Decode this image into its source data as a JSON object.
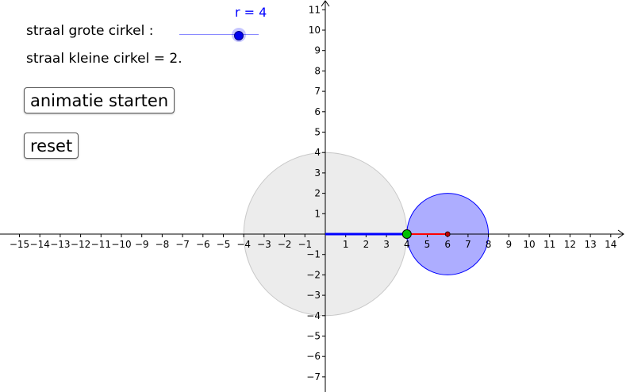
{
  "controls": {
    "big_radius_label": "straal grote cirkel :",
    "small_radius_label": "straal kleine cirkel = 2.",
    "slider_label": "r = 4",
    "slider_value": 4,
    "slider_min": 1,
    "slider_max": 5,
    "animate_button": "animatie starten",
    "reset_button": "reset"
  },
  "chart_data": {
    "type": "geometry",
    "xlim": [
      -15.5,
      14.5
    ],
    "ylim": [
      -7.5,
      11.2
    ],
    "x_ticks": [
      -15,
      -14,
      -13,
      -12,
      -11,
      -10,
      -9,
      -8,
      -7,
      -6,
      -5,
      -4,
      -3,
      -2,
      -1,
      1,
      2,
      3,
      4,
      5,
      6,
      7,
      8,
      9,
      10,
      11,
      12,
      13,
      14
    ],
    "y_ticks": [
      -7,
      -6,
      -5,
      -4,
      -3,
      -2,
      -1,
      1,
      2,
      3,
      4,
      5,
      6,
      7,
      8,
      9,
      10,
      11
    ],
    "grid": false,
    "big_circle": {
      "center": [
        0,
        0
      ],
      "radius": 4,
      "fill": "#ececec",
      "stroke": "#c8c8c8"
    },
    "small_circle": {
      "center": [
        6,
        0
      ],
      "radius": 2,
      "fill": "#a9a9ff",
      "stroke": "#0000ff"
    },
    "segment_blue": {
      "from": [
        0,
        0
      ],
      "to": [
        4,
        0
      ],
      "color": "#0000ff"
    },
    "segment_red": {
      "from": [
        4,
        0
      ],
      "to": [
        6,
        0
      ],
      "color": "#ff0000"
    },
    "point_contact": {
      "at": [
        4,
        0
      ],
      "color": "#00c000"
    },
    "point_center": {
      "at": [
        6,
        0
      ],
      "color": "#c00000"
    }
  }
}
